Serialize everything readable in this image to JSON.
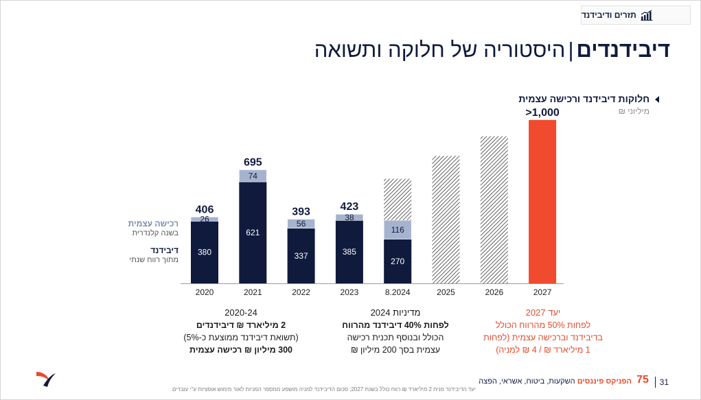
{
  "top_tab": {
    "label": "תזרים ודיבידנד",
    "icon": "chart-growth-icon"
  },
  "title": {
    "bold": "דיבידנדים",
    "separator": "|",
    "rest": "היסטוריה של חלוקה ותשואה"
  },
  "section": {
    "title": "חלוקות דיבידנד ורכישה עצמית",
    "unit": "מיליוני ₪"
  },
  "legend": {
    "buyback": {
      "label": "רכישה עצמית",
      "sub": "בשנה קלנדרית"
    },
    "dividend": {
      "label": "דיבידנד",
      "sub": "מתוך רווח שנתי"
    }
  },
  "colors": {
    "dividend": "#0f1a3d",
    "buyback": "#a6b3cf",
    "target": "#f04b2e",
    "text": "#0f1a3d"
  },
  "chart_data": {
    "type": "bar",
    "categories": [
      "2020",
      "2021",
      "2022",
      "2023",
      "8.2024",
      "2025",
      "2026",
      "2027"
    ],
    "series": [
      {
        "name": "דיבידנד",
        "values": [
          380,
          621,
          337,
          385,
          270,
          null,
          null,
          null
        ]
      },
      {
        "name": "רכישה עצמית",
        "values": [
          26,
          74,
          56,
          38,
          116,
          null,
          null,
          null
        ]
      }
    ],
    "totals": [
      "406",
      "695",
      "393",
      "423",
      "",
      "",
      "",
      ">1,000"
    ],
    "forecast": [
      {
        "category": "8.2024",
        "estimated_total": 640,
        "style": "hatched"
      },
      {
        "category": "2025",
        "estimated_total": 780,
        "style": "hatched"
      },
      {
        "category": "2026",
        "estimated_total": 900,
        "style": "hatched"
      },
      {
        "category": "2027",
        "estimated_total": 1000,
        "style": "solid-red"
      }
    ],
    "ylim": [
      0,
      1100
    ],
    "xlabel": "",
    "ylabel": ""
  },
  "blurbs": [
    {
      "head": "2020-24",
      "lines": [
        "2 מיליארד ₪ דיבידנדים",
        "(תשואת דיבידנד ממוצעת כ-5%)",
        "300 מיליון ₪ רכישה עצמית"
      ]
    },
    {
      "head": "מדיניות 2024",
      "lines": [
        "לפחות 40% דיבידנד מהרווח",
        "הכולל ובנוסף תכנית רכישה",
        "עצמית בסך 200 מיליון ₪"
      ]
    },
    {
      "head": "יעד 2027",
      "lines": [
        "לפחות 50% מהרווח הכולל",
        "בדיבידנד וברכישה עצמית (לפחות",
        "1 מיליארד ₪ / 4 ₪ למניה)"
      ]
    }
  ],
  "footer": {
    "note": "יעד הדיבידנד מניח 2 מיליארד ₪ רווח כולל בשנת 2027; סכום הדיבידנד למניה מושפע ממספר המניות לאור מימוש אופציות ע\"י עובדים",
    "brand_name": "הפניקס פיננסים",
    "brand_tagline": "השקעות, ביטוח, אשראי, הפצה",
    "page": "31",
    "badge": "75"
  }
}
